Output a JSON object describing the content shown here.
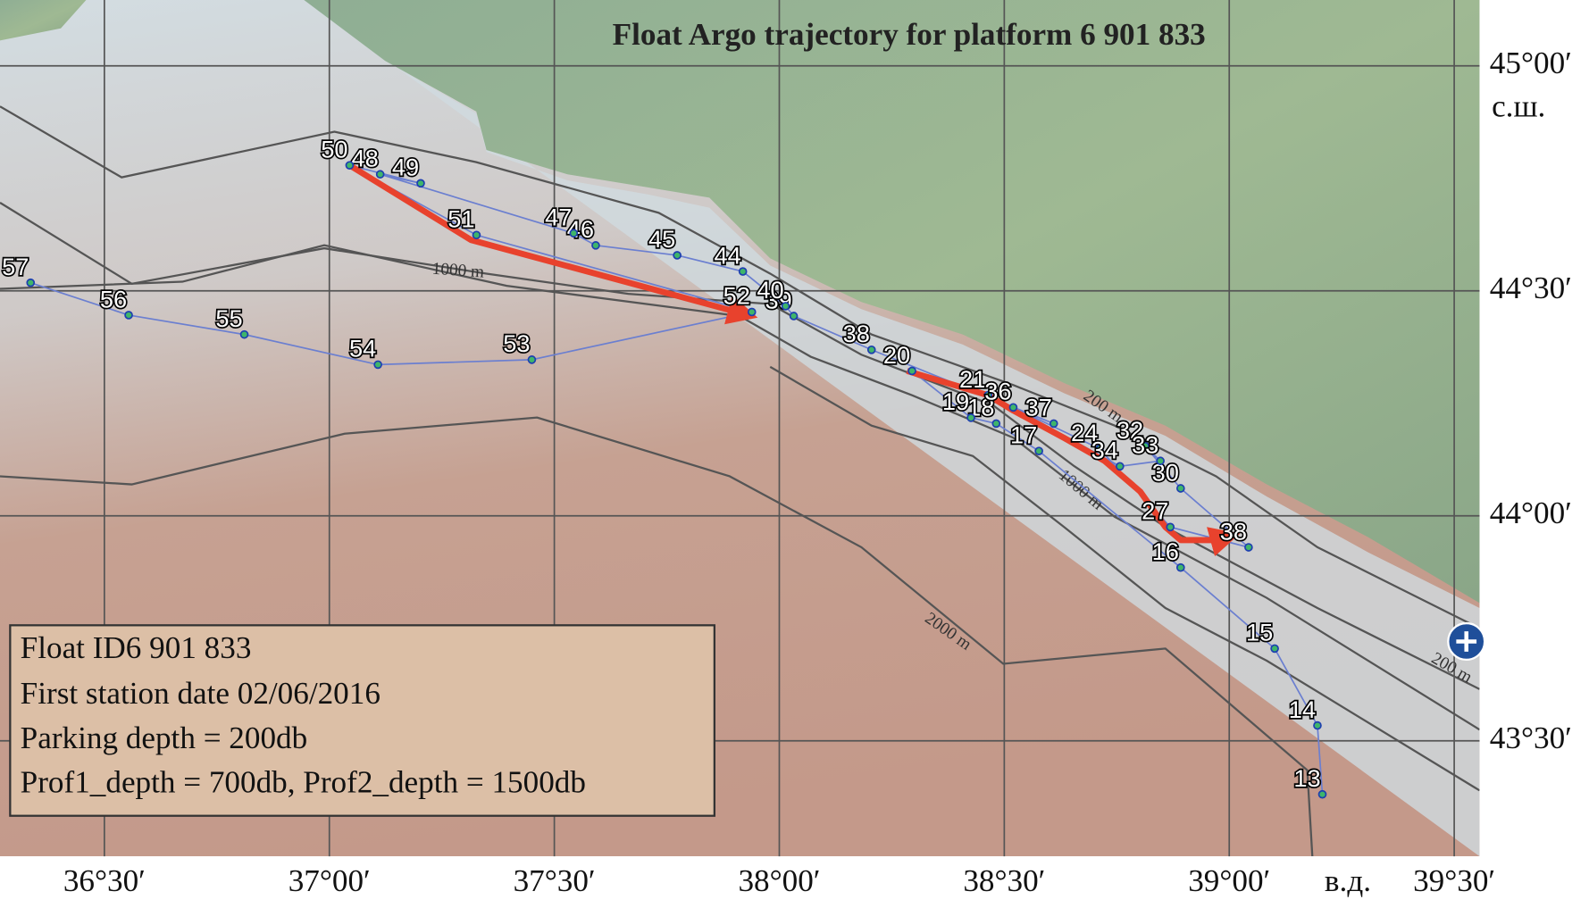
{
  "title": "Float Argo trajectory for platform 6 901 833",
  "info": [
    "Float ID6 901 833",
    "First station date 02/06/2016",
    "Parking depth = 200db",
    "Prof1_depth = 700db, Prof2_depth = 1500db"
  ],
  "lon_axis": {
    "unit_label": "в.д.",
    "ticks": [
      {
        "value": 36.5,
        "label": "36°30′"
      },
      {
        "value": 37,
        "label": "37°00′"
      },
      {
        "value": 37.5,
        "label": "37°30′"
      },
      {
        "value": 38,
        "label": "38°00′"
      },
      {
        "value": 38.5,
        "label": "38°30′"
      },
      {
        "value": 39,
        "label": "39°00′"
      },
      {
        "value": 39.5,
        "label": "39°30′"
      }
    ]
  },
  "lat_axis": {
    "unit_label": "с.ш.",
    "ticks": [
      {
        "value": 45,
        "label": "45°00′"
      },
      {
        "value": 44.5,
        "label": "44°30′"
      },
      {
        "value": 44,
        "label": "44°00′"
      },
      {
        "value": 43.5,
        "label": "43°30′"
      }
    ]
  },
  "isobath_labels": [
    "1000 m",
    "200 m",
    "1000 m",
    "2000 m",
    "200 m"
  ],
  "stations": [
    {
      "label": "13",
      "lon": 39.207,
      "lat": 43.381
    },
    {
      "label": "14",
      "lon": 39.196,
      "lat": 43.534
    },
    {
      "label": "15",
      "lon": 39.101,
      "lat": 43.705
    },
    {
      "label": "16",
      "lon": 38.892,
      "lat": 43.885
    },
    {
      "label": "17",
      "lon": 38.577,
      "lat": 44.144
    },
    {
      "label": "18",
      "lon": 38.482,
      "lat": 44.205
    },
    {
      "label": "19",
      "lon": 38.426,
      "lat": 44.218
    },
    {
      "label": "20",
      "lon": 38.295,
      "lat": 44.322
    },
    {
      "label": "21",
      "lon": 38.464,
      "lat": 44.268
    },
    {
      "label": "24",
      "lon": 38.712,
      "lat": 44.149
    },
    {
      "label": "27",
      "lon": 38.869,
      "lat": 43.975
    },
    {
      "label": "38",
      "lon": 39.043,
      "lat": 43.93
    },
    {
      "label": "30",
      "lon": 38.892,
      "lat": 44.061
    },
    {
      "label": "32",
      "lon": 38.813,
      "lat": 44.155
    },
    {
      "label": "33",
      "lon": 38.847,
      "lat": 44.122
    },
    {
      "label": "34",
      "lon": 38.757,
      "lat": 44.11
    },
    {
      "label": "36",
      "lon": 38.52,
      "lat": 44.241
    },
    {
      "label": "37",
      "lon": 38.61,
      "lat": 44.205
    },
    {
      "label": "38",
      "lon": 38.205,
      "lat": 44.369
    },
    {
      "label": "39",
      "lon": 38.032,
      "lat": 44.444
    },
    {
      "label": "40",
      "lon": 38.014,
      "lat": 44.466
    },
    {
      "label": "44",
      "lon": 37.919,
      "lat": 44.543
    },
    {
      "label": "45",
      "lon": 37.773,
      "lat": 44.579
    },
    {
      "label": "46",
      "lon": 37.592,
      "lat": 44.601
    },
    {
      "label": "47",
      "lon": 37.543,
      "lat": 44.628
    },
    {
      "label": "48",
      "lon": 37.113,
      "lat": 44.759
    },
    {
      "label": "49",
      "lon": 37.203,
      "lat": 44.739
    },
    {
      "label": "50",
      "lon": 37.045,
      "lat": 44.779
    },
    {
      "label": "51",
      "lon": 37.327,
      "lat": 44.624
    },
    {
      "label": "52",
      "lon": 37.939,
      "lat": 44.453
    },
    {
      "label": "53",
      "lon": 37.45,
      "lat": 44.347
    },
    {
      "label": "54",
      "lon": 37.108,
      "lat": 44.336
    },
    {
      "label": "55",
      "lon": 36.811,
      "lat": 44.403
    },
    {
      "label": "56",
      "lon": 36.554,
      "lat": 44.446
    },
    {
      "label": "57",
      "lon": 36.336,
      "lat": 44.518
    }
  ],
  "drift_paths": [
    {
      "lon": [
        37.045,
        37.315,
        37.939
      ],
      "lat": [
        44.779,
        44.613,
        44.444
      ]
    },
    {
      "lon": [
        38.284,
        38.464,
        38.52,
        38.633,
        38.723,
        38.802,
        38.858,
        38.892,
        38.971,
        39.011
      ],
      "lat": [
        44.322,
        44.268,
        44.234,
        44.173,
        44.122,
        44.054,
        43.975,
        43.946,
        43.946,
        43.957
      ]
    }
  ]
}
